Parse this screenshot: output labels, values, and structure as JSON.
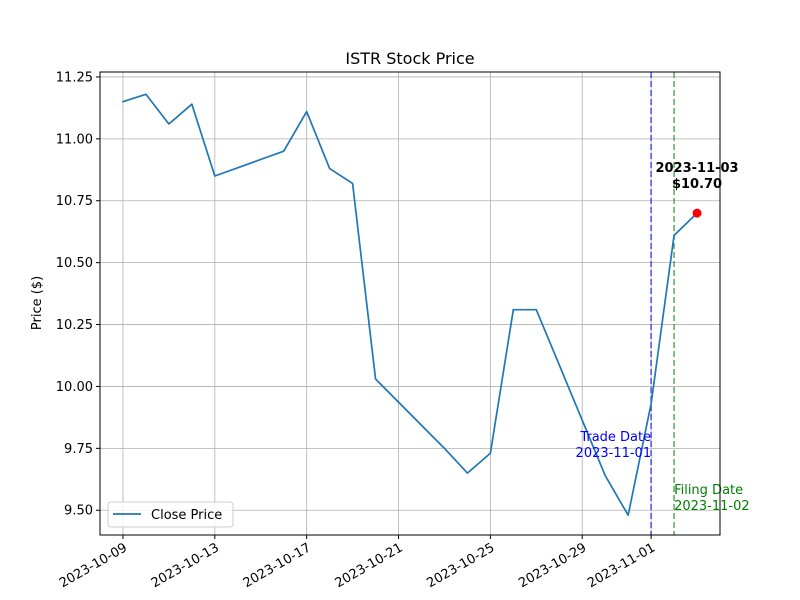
{
  "chart_data": {
    "type": "line",
    "title": "ISTR Stock Price",
    "xlabel": "",
    "ylabel": "Price ($)",
    "ylim": [
      9.4,
      11.27
    ],
    "xlim": [
      "2023-10-08",
      "2023-11-04"
    ],
    "grid": true,
    "legend_position": "lower-left",
    "yticks": [
      "9.50",
      "9.75",
      "10.00",
      "10.25",
      "10.50",
      "10.75",
      "11.00",
      "11.25"
    ],
    "ytick_values": [
      9.5,
      9.75,
      10.0,
      10.25,
      10.5,
      10.75,
      11.0,
      11.25
    ],
    "xticks": [
      "2023-10-09",
      "2023-10-13",
      "2023-10-17",
      "2023-10-21",
      "2023-10-25",
      "2023-10-29",
      "2023-11-01"
    ],
    "xtick_dates": [
      "2023-10-09",
      "2023-10-13",
      "2023-10-17",
      "2023-10-21",
      "2023-10-25",
      "2023-10-29",
      "2023-11-01"
    ],
    "series": [
      {
        "name": "Close Price",
        "color": "#1f77b4",
        "x": [
          "2023-10-09",
          "2023-10-10",
          "2023-10-11",
          "2023-10-12",
          "2023-10-13",
          "2023-10-16",
          "2023-10-17",
          "2023-10-18",
          "2023-10-19",
          "2023-10-20",
          "2023-10-23",
          "2023-10-24",
          "2023-10-25",
          "2023-10-26",
          "2023-10-27",
          "2023-10-30",
          "2023-10-31",
          "2023-11-01",
          "2023-11-02",
          "2023-11-03"
        ],
        "y": [
          11.15,
          11.18,
          11.06,
          11.14,
          10.85,
          10.95,
          11.11,
          10.88,
          10.82,
          10.03,
          9.75,
          9.65,
          9.73,
          10.31,
          10.31,
          9.64,
          9.48,
          9.93,
          10.61,
          10.7
        ]
      }
    ],
    "vlines": [
      {
        "date": "2023-11-01",
        "color": "#0000ff",
        "label_line1": "Trade Date",
        "label_line2": "2023-11-01"
      },
      {
        "date": "2023-11-02",
        "color": "#008000",
        "label_line1": "Filing Date",
        "label_line2": "2023-11-02"
      }
    ],
    "highlight": {
      "date": "2023-11-03",
      "value": 10.7,
      "color": "#ff0000",
      "label_line1": "2023-11-03",
      "label_line2": "$10.70"
    }
  }
}
